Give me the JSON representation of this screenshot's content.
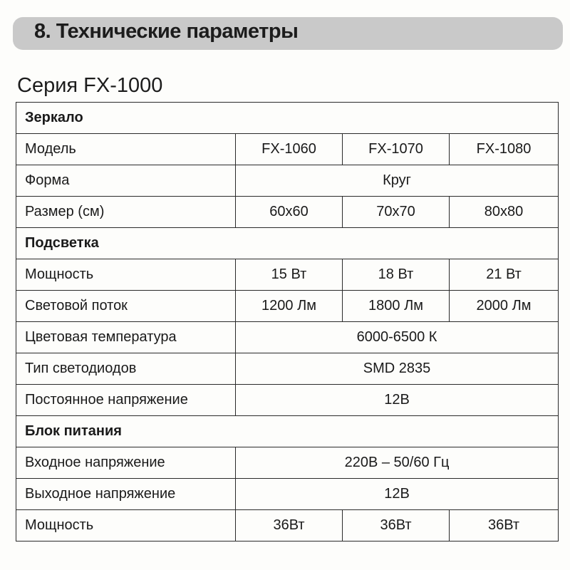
{
  "header": {
    "title": "8. Технические параметры",
    "banner_color": "#c9c9c9"
  },
  "series_title": "Серия FX-1000",
  "table": [
    {
      "type": "section",
      "label": "Зеркало"
    },
    {
      "label": "Модель",
      "values": [
        "FX-1060",
        "FX-1070",
        "FX-1080"
      ]
    },
    {
      "label": "Форма",
      "value": "Круг"
    },
    {
      "label": "Размер (см)",
      "values": [
        "60x60",
        "70x70",
        "80x80"
      ]
    },
    {
      "type": "section",
      "label": "Подсветка"
    },
    {
      "label": "Мощность",
      "values": [
        "15 Вт",
        "18 Вт",
        "21 Вт"
      ]
    },
    {
      "label": "Световой поток",
      "values": [
        "1200 Лм",
        "1800 Лм",
        "2000 Лм"
      ]
    },
    {
      "label": "Цветовая температура",
      "value": "6000-6500 К"
    },
    {
      "label": "Тип светодиодов",
      "value": "SMD 2835"
    },
    {
      "label": "Постоянное напряжение",
      "value": "12В"
    },
    {
      "type": "section",
      "label": "Блок питания"
    },
    {
      "label": "Входное напряжение",
      "value": "220В – 50/60 Гц"
    },
    {
      "label": "Выходное напряжение",
      "value": "12В"
    },
    {
      "label": "Мощность",
      "values": [
        "36Вт",
        "36Вт",
        "36Вт"
      ]
    }
  ]
}
